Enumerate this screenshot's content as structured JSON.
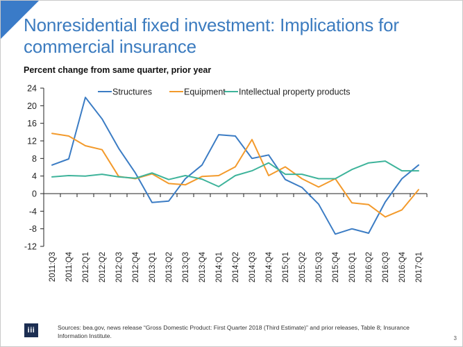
{
  "slide": {
    "title": "Nonresidential fixed investment: Implications for commercial insurance",
    "subtitle": "Percent change from same quarter, prior year",
    "sources": "Sources: bea.gov, news release “Gross Domestic Product: First Quarter 2018 (Third Estimate)” and prior releases, Table 8; Insurance Information Institute.",
    "logo_text": "iii",
    "page_number": "3",
    "accent_color": "#3a7bc8",
    "logo_icon": "iii-logo-icon"
  },
  "chart_data": {
    "type": "line",
    "title": "",
    "xlabel": "",
    "ylabel": "Percent change from same quarter, prior year",
    "ylim": [
      -12,
      24
    ],
    "yticks": [
      24,
      20,
      16,
      12,
      8,
      4,
      0,
      -4,
      -8,
      -12
    ],
    "grid": false,
    "legend_position": "top",
    "categories": [
      "2011:Q3",
      "2011:Q4",
      "2012:Q1",
      "2012:Q2",
      "2012:Q3",
      "2012:Q4",
      "2013:Q1",
      "2013:Q2",
      "2013:Q3",
      "2013:Q4",
      "2014:Q1",
      "2014:Q2",
      "2014:Q3",
      "2014:Q4",
      "2015:Q1",
      "2015:Q2",
      "2015:Q3",
      "2015:Q4",
      "2016:Q1",
      "2016:Q2",
      "2016:Q3",
      "2016:Q4",
      "2017:Q1"
    ],
    "series": [
      {
        "name": "Structures",
        "color": "#3b7cc4",
        "values": [
          6.5,
          7.9,
          21.9,
          17.0,
          10.3,
          4.7,
          -2.0,
          -1.7,
          3.4,
          6.5,
          13.4,
          13.1,
          8.0,
          8.8,
          3.2,
          1.4,
          -2.4,
          -9.2,
          -8.0,
          -9.0,
          -1.9,
          3.4,
          6.5
        ]
      },
      {
        "name": "Equipment",
        "color": "#f39a2b",
        "values": [
          13.7,
          13.1,
          10.9,
          10.0,
          3.9,
          3.4,
          4.5,
          2.3,
          2.0,
          3.9,
          4.1,
          6.1,
          12.3,
          4.1,
          6.1,
          3.4,
          1.5,
          3.4,
          -2.1,
          -2.5,
          -5.3,
          -3.7,
          0.9
        ]
      },
      {
        "name": "Intellectual property products",
        "color": "#3db39a",
        "values": [
          3.8,
          4.1,
          4.0,
          4.4,
          3.8,
          3.5,
          4.7,
          3.2,
          4.1,
          3.3,
          1.6,
          4.1,
          5.2,
          7.0,
          4.4,
          4.4,
          3.4,
          3.4,
          5.5,
          7.0,
          7.4,
          5.2,
          5.2
        ]
      }
    ]
  }
}
